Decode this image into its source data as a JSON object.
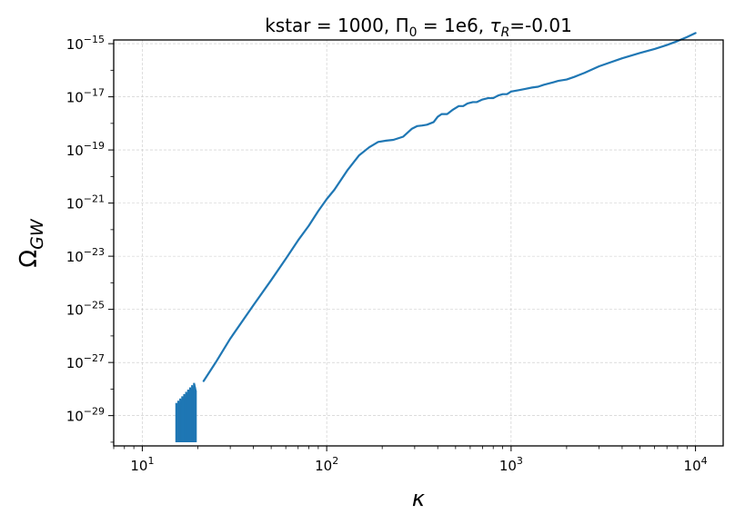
{
  "chart_data": {
    "type": "line",
    "title": "kstar = 1000, Π₀ = 1e6, τ_R=-0.01",
    "title_parts": {
      "before_pi": "kstar = 1000, Π",
      "pi_subscript": "0",
      "middle": " = 1e6, ",
      "tau": "τ",
      "tau_subscript": "R",
      "after": "=-0.01"
    },
    "xlabel": "κ",
    "ylabel": "Ω",
    "ylabel_subscript": "GW",
    "xscale": "log",
    "yscale": "log",
    "xlim_log10": [
      0.845,
      4.15
    ],
    "ylim_log10": [
      -30.14,
      -14.86
    ],
    "grid": true,
    "color": "#1f77b4",
    "x_ticks": [
      {
        "log10": 1,
        "base": "10",
        "exp": "1"
      },
      {
        "log10": 2,
        "base": "10",
        "exp": "2"
      },
      {
        "log10": 3,
        "base": "10",
        "exp": "3"
      },
      {
        "log10": 4,
        "base": "10",
        "exp": "4"
      }
    ],
    "y_ticks": [
      {
        "log10": -29,
        "base": "10",
        "exp": "−29"
      },
      {
        "log10": -27,
        "base": "10",
        "exp": "−27"
      },
      {
        "log10": -25,
        "base": "10",
        "exp": "−25"
      },
      {
        "log10": -23,
        "base": "10",
        "exp": "−23"
      },
      {
        "log10": -21,
        "base": "10",
        "exp": "−21"
      },
      {
        "log10": -19,
        "base": "10",
        "exp": "−19"
      },
      {
        "log10": -17,
        "base": "10",
        "exp": "−17"
      },
      {
        "log10": -15,
        "base": "10",
        "exp": "−15"
      }
    ],
    "series": [
      {
        "x": [
          21.5,
          25,
          30,
          40,
          50,
          60,
          70,
          80,
          90,
          100,
          110,
          130,
          150,
          170,
          190,
          210,
          230,
          260,
          290,
          310,
          330,
          350,
          380,
          400,
          420,
          450,
          480,
          520,
          550,
          580,
          620,
          650,
          700,
          750,
          800,
          850,
          900,
          950,
          1000,
          1100,
          1200,
          1300,
          1400,
          1500,
          1600,
          1700,
          1800,
          2000,
          2200,
          2500,
          3000,
          4000,
          5000,
          6000,
          7000,
          8000,
          9000,
          10000
        ],
        "y": [
          2e-28,
          1e-27,
          7.94e-27,
          1.41e-25,
          1.26e-24,
          7.94e-24,
          3.98e-23,
          1.41e-22,
          5.01e-22,
          1.41e-21,
          3.16e-21,
          1.78e-20,
          6.31e-20,
          1.26e-19,
          2e-19,
          2.24e-19,
          2.4e-19,
          3.16e-19,
          6.31e-19,
          7.94e-19,
          8.32e-19,
          8.91e-19,
          1.12e-18,
          1.78e-18,
          2.24e-18,
          2.24e-18,
          3.16e-18,
          4.47e-18,
          4.47e-18,
          5.62e-18,
          6.31e-18,
          6.31e-18,
          7.94e-18,
          8.91e-18,
          8.91e-18,
          1.12e-17,
          1.26e-17,
          1.26e-17,
          1.58e-17,
          1.78e-17,
          2e-17,
          2.24e-17,
          2.4e-17,
          2.82e-17,
          3.16e-17,
          3.55e-17,
          3.98e-17,
          4.47e-17,
          5.62e-17,
          7.94e-17,
          1.41e-16,
          2.82e-16,
          4.47e-16,
          6.31e-16,
          8.91e-16,
          1.26e-15,
          1.78e-15,
          2.51e-15
        ]
      }
    ],
    "oscillation_region": {
      "x_start": 15.3,
      "x_end": 19.5,
      "y_floor": 1e-30,
      "y_ceiling_start": 3e-29,
      "y_ceiling_end": 2e-28
    }
  }
}
